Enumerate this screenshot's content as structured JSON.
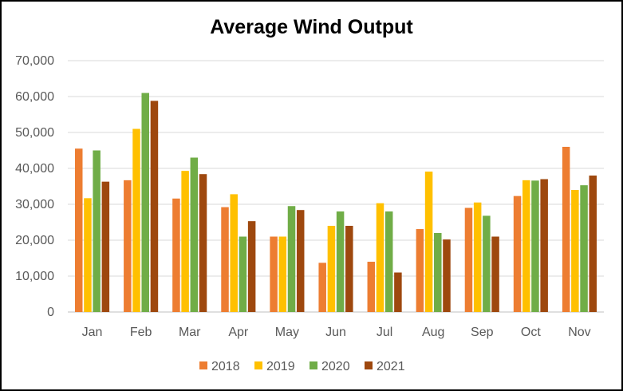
{
  "chart_data": {
    "type": "bar",
    "title": "Average Wind Output",
    "xlabel": "",
    "ylabel": "",
    "ylim": [
      0,
      70000
    ],
    "yticks": [
      "0",
      "10,000",
      "20,000",
      "30,000",
      "40,000",
      "50,000",
      "60,000",
      "70,000"
    ],
    "grid": true,
    "legend_position": "bottom",
    "categories": [
      "Jan",
      "Feb",
      "Mar",
      "Apr",
      "May",
      "Jun",
      "Jul",
      "Aug",
      "Sep",
      "Oct",
      "Nov"
    ],
    "series": [
      {
        "name": "2018",
        "color": "#ED7D31",
        "values": [
          45500,
          36700,
          31600,
          29200,
          21000,
          13700,
          14000,
          23100,
          29000,
          32300,
          46000
        ]
      },
      {
        "name": "2019",
        "color": "#FFC000",
        "values": [
          31700,
          51000,
          39300,
          32800,
          21000,
          24000,
          30300,
          39100,
          30500,
          36700,
          34000
        ]
      },
      {
        "name": "2020",
        "color": "#70AD47",
        "values": [
          45000,
          61000,
          43000,
          21000,
          29500,
          28000,
          28000,
          22000,
          26800,
          36600,
          35300
        ]
      },
      {
        "name": "2021",
        "color": "#9E480E",
        "values": [
          36300,
          58800,
          38400,
          25300,
          28400,
          24000,
          11000,
          20200,
          21000,
          37000,
          38000
        ]
      }
    ]
  }
}
